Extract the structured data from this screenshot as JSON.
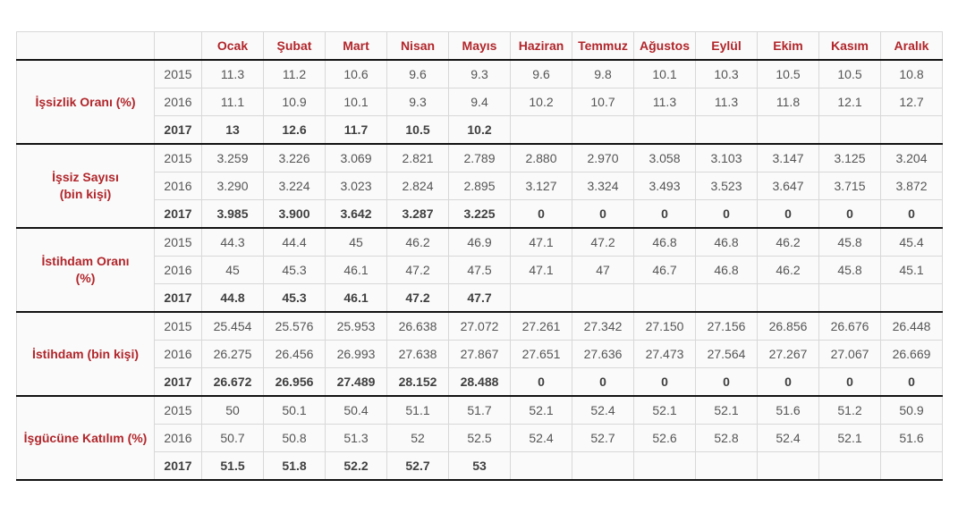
{
  "colors": {
    "accent_red": "#b1262b",
    "body_text": "#555555",
    "bold_text": "#404040",
    "grid_border": "#d8d8d8",
    "section_border": "#111111",
    "cell_background": "#fafafa",
    "page_background": "#ffffff"
  },
  "chart_data": {
    "type": "table",
    "columns": [
      "Ocak",
      "Şubat",
      "Mart",
      "Nisan",
      "Mayıs",
      "Haziran",
      "Temmuz",
      "Ağustos",
      "Eylül",
      "Ekim",
      "Kasım",
      "Aralık"
    ],
    "row_groups": [
      {
        "label": "İşsizlik Oranı (%)",
        "label_lines": [
          "İşsizlik Oranı (%)"
        ],
        "rows": [
          {
            "year": "2015",
            "bold": false,
            "values": [
              "11.3",
              "11.2",
              "10.6",
              "9.6",
              "9.3",
              "9.6",
              "9.8",
              "10.1",
              "10.3",
              "10.5",
              "10.5",
              "10.8"
            ]
          },
          {
            "year": "2016",
            "bold": false,
            "values": [
              "11.1",
              "10.9",
              "10.1",
              "9.3",
              "9.4",
              "10.2",
              "10.7",
              "11.3",
              "11.3",
              "11.8",
              "12.1",
              "12.7"
            ]
          },
          {
            "year": "2017",
            "bold": true,
            "values": [
              "13",
              "12.6",
              "11.7",
              "10.5",
              "10.2",
              "",
              "",
              "",
              "",
              "",
              "",
              ""
            ]
          }
        ]
      },
      {
        "label": "İşsiz Sayısı (bin kişi)",
        "label_lines": [
          "İşsiz Sayısı",
          "(bin kişi)"
        ],
        "rows": [
          {
            "year": "2015",
            "bold": false,
            "values": [
              "3.259",
              "3.226",
              "3.069",
              "2.821",
              "2.789",
              "2.880",
              "2.970",
              "3.058",
              "3.103",
              "3.147",
              "3.125",
              "3.204"
            ]
          },
          {
            "year": "2016",
            "bold": false,
            "values": [
              "3.290",
              "3.224",
              "3.023",
              "2.824",
              "2.895",
              "3.127",
              "3.324",
              "3.493",
              "3.523",
              "3.647",
              "3.715",
              "3.872"
            ]
          },
          {
            "year": "2017",
            "bold": true,
            "values": [
              "3.985",
              "3.900",
              "3.642",
              "3.287",
              "3.225",
              "0",
              "0",
              "0",
              "0",
              "0",
              "0",
              "0"
            ]
          }
        ]
      },
      {
        "label": "İstihdam Oranı (%)",
        "label_lines": [
          "İstihdam Oranı",
          "(%)"
        ],
        "rows": [
          {
            "year": "2015",
            "bold": false,
            "values": [
              "44.3",
              "44.4",
              "45",
              "46.2",
              "46.9",
              "47.1",
              "47.2",
              "46.8",
              "46.8",
              "46.2",
              "45.8",
              "45.4"
            ]
          },
          {
            "year": "2016",
            "bold": false,
            "values": [
              "45",
              "45.3",
              "46.1",
              "47.2",
              "47.5",
              "47.1",
              "47",
              "46.7",
              "46.8",
              "46.2",
              "45.8",
              "45.1"
            ]
          },
          {
            "year": "2017",
            "bold": true,
            "values": [
              "44.8",
              "45.3",
              "46.1",
              "47.2",
              "47.7",
              "",
              "",
              "",
              "",
              "",
              "",
              ""
            ]
          }
        ]
      },
      {
        "label": "İstihdam (bin kişi)",
        "label_lines": [
          "İstihdam (bin kişi)"
        ],
        "rows": [
          {
            "year": "2015",
            "bold": false,
            "values": [
              "25.454",
              "25.576",
              "25.953",
              "26.638",
              "27.072",
              "27.261",
              "27.342",
              "27.150",
              "27.156",
              "26.856",
              "26.676",
              "26.448"
            ]
          },
          {
            "year": "2016",
            "bold": false,
            "values": [
              "26.275",
              "26.456",
              "26.993",
              "27.638",
              "27.867",
              "27.651",
              "27.636",
              "27.473",
              "27.564",
              "27.267",
              "27.067",
              "26.669"
            ]
          },
          {
            "year": "2017",
            "bold": true,
            "values": [
              "26.672",
              "26.956",
              "27.489",
              "28.152",
              "28.488",
              "0",
              "0",
              "0",
              "0",
              "0",
              "0",
              "0"
            ]
          }
        ]
      },
      {
        "label": "İşgücüne Katılım (%)",
        "label_lines": [
          "İşgücüne Katılım (%)"
        ],
        "rows": [
          {
            "year": "2015",
            "bold": false,
            "values": [
              "50",
              "50.1",
              "50.4",
              "51.1",
              "51.7",
              "52.1",
              "52.4",
              "52.1",
              "52.1",
              "51.6",
              "51.2",
              "50.9"
            ]
          },
          {
            "year": "2016",
            "bold": false,
            "values": [
              "50.7",
              "50.8",
              "51.3",
              "52",
              "52.5",
              "52.4",
              "52.7",
              "52.6",
              "52.8",
              "52.4",
              "52.1",
              "51.6"
            ]
          },
          {
            "year": "2017",
            "bold": true,
            "values": [
              "51.5",
              "51.8",
              "52.2",
              "52.7",
              "53",
              "",
              "",
              "",
              "",
              "",
              "",
              ""
            ]
          }
        ]
      }
    ]
  }
}
